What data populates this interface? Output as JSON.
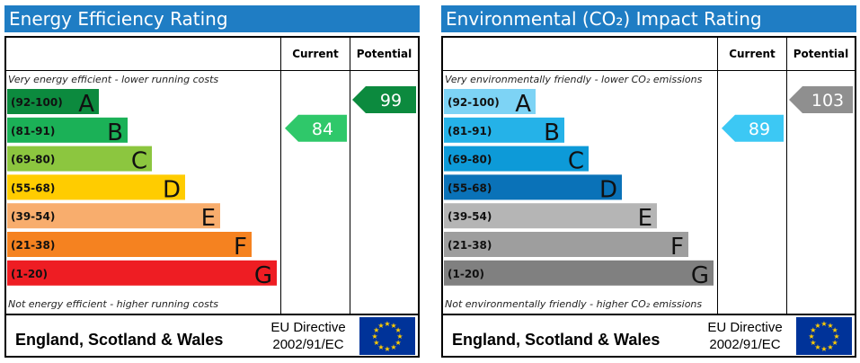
{
  "chart_data": [
    {
      "type": "bar",
      "title": "Energy Efficiency Rating",
      "column_headers": [
        "Current",
        "Potential"
      ],
      "top_note": "Very energy efficient - lower running costs",
      "bottom_note": "Not energy efficient - higher running costs",
      "categories": [
        "A",
        "B",
        "C",
        "D",
        "E",
        "F",
        "G"
      ],
      "ranges": [
        "(92-100)",
        "(81-91)",
        "(69-80)",
        "(55-68)",
        "(39-54)",
        "(21-38)",
        "(1-20)"
      ],
      "colors": [
        "#0c8a3e",
        "#1bb157",
        "#8cc63f",
        "#ffcc00",
        "#f8ad6d",
        "#f58220",
        "#ee1d23"
      ],
      "current": {
        "value": 84,
        "band": "B",
        "color": "#2fc86a"
      },
      "potential": {
        "value": 99,
        "band": "A",
        "color": "#0c8a3e"
      },
      "footer": "England, Scotland & Wales",
      "directive_line1": "EU Directive",
      "directive_line2": "2002/91/EC"
    },
    {
      "type": "bar",
      "title": "Environmental (CO₂) Impact Rating",
      "column_headers": [
        "Current",
        "Potential"
      ],
      "top_note": "Very environmentally friendly - lower CO₂ emissions",
      "bottom_note": "Not environmentally friendly - higher CO₂ emissions",
      "categories": [
        "A",
        "B",
        "C",
        "D",
        "E",
        "F",
        "G"
      ],
      "ranges": [
        "(92-100)",
        "(81-91)",
        "(69-80)",
        "(55-68)",
        "(39-54)",
        "(21-38)",
        "(1-20)"
      ],
      "colors": [
        "#7dd3f5",
        "#25b2e8",
        "#0d9ad8",
        "#0a72b8",
        "#b5b5b5",
        "#9e9e9e",
        "#808080"
      ],
      "current": {
        "value": 89,
        "band": "B",
        "color": "#3cc8f4"
      },
      "potential": {
        "value": 103,
        "band": "A",
        "color": "#8f8f8f"
      },
      "footer": "England, Scotland & Wales",
      "directive_line1": "EU Directive",
      "directive_line2": "2002/91/EC"
    }
  ]
}
